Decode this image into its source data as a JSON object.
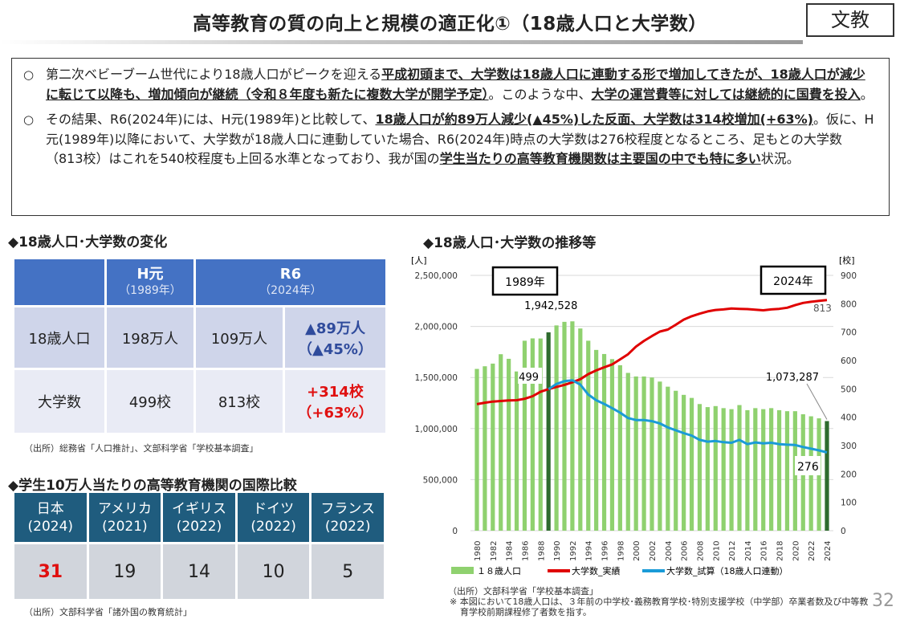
{
  "title": "高等教育の質の向上と規模の適正化①（18歳人口と大学数）",
  "badge": "文教",
  "summary": {
    "bullet": "○",
    "p1": [
      "第二次ベビーブーム世代により18歳人口がピークを迎える",
      "平成初頭まで、大学数は18歳人口に連動する形で増加してきたが、18歳人口が減少に転じて以降も、増加傾向が継続（令和８年度も新たに複数大学が開学予定）",
      "。このような中、",
      "大学の運営費等に対しては継続的に国費を投入",
      "。"
    ],
    "p2": [
      "その結果、R6(2024年)には、H元(1989年)と比較して、",
      "18歳人口が約89万人減少(▲45%)した反面、大学数は314校増加(+63%)",
      "。仮に、H元(1989年)以降において、大学数が18歳人口に連動していた場合、R6(2024年)時点の大学数は276校程度となるところ、足もとの大学数（813校）はこれを540校程度も上回る水準となっており、我が国の",
      "学生当たりの高等教育機関数は主要国の中でも特に多い",
      "状況。"
    ]
  },
  "table1": {
    "heading": "◆18歳人口･大学数の変化",
    "h1": "H元",
    "h1sub": "（1989年）",
    "h2": "R6",
    "h2sub": "（2024年）",
    "rows": [
      {
        "label": "18歳人口",
        "v1": "198万人",
        "v2": "109万人",
        "diff": "▲89万人",
        "diffpct": "（▲45%）"
      },
      {
        "label": "大学数",
        "v1": "499校",
        "v2": "813校",
        "diff": "+314校",
        "diffpct": "（+63%）"
      }
    ],
    "source": "（出所）総務省「人口推計」、文部科学省「学校基本調査」"
  },
  "table2": {
    "heading": "◆学生10万人当たりの高等教育機関の国際比較",
    "cols": [
      {
        "country": "日本",
        "year": "(2024)",
        "value": "31"
      },
      {
        "country": "アメリカ",
        "year": "(2021)",
        "value": "19"
      },
      {
        "country": "イギリス",
        "year": "(2022)",
        "value": "14"
      },
      {
        "country": "ドイツ",
        "year": "(2022)",
        "value": "10"
      },
      {
        "country": "フランス",
        "year": "(2022)",
        "value": "5"
      }
    ],
    "source": "（出所）文部科学省「諸外国の教育統計」"
  },
  "chart_heading": "◆18歳人口･大学数の推移等",
  "chart_source": "（出所）文部科学省「学校基本調査」",
  "chart_note": "※ 本図において18歳人口は、３年前の中学校･義務教育学校･特別支援学校（中学部）卒業者数及び中等教育学校前期課程修了者数を指す。",
  "page_number": "32",
  "colors": {
    "bar": "#8fd16f",
    "bar_highlight": "#2e6b2e",
    "actual": "#e00000",
    "estimate": "#1a9bd7",
    "table1_header": "#4472c4",
    "table2_header": "#1f5c7e"
  },
  "chart_data": {
    "type": "bar+line",
    "x": [
      1980,
      1981,
      1982,
      1983,
      1984,
      1985,
      1986,
      1987,
      1988,
      1989,
      1990,
      1991,
      1992,
      1993,
      1994,
      1995,
      1996,
      1997,
      1998,
      1999,
      2000,
      2001,
      2002,
      2003,
      2004,
      2005,
      2006,
      2007,
      2008,
      2009,
      2010,
      2011,
      2012,
      2013,
      2014,
      2015,
      2016,
      2017,
      2018,
      2019,
      2020,
      2021,
      2022,
      2023,
      2024
    ],
    "xticks": [
      "1980",
      "1982",
      "1984",
      "1986",
      "1988",
      "1990",
      "1992",
      "1994",
      "1996",
      "1998",
      "2000",
      "2002",
      "2004",
      "2006",
      "2008",
      "2010",
      "2012",
      "2014",
      "2016",
      "2018",
      "2020",
      "2022",
      "2024"
    ],
    "ylabel_left": "[人]",
    "ylabel_right": "[校]",
    "ylim_left": [
      0,
      2500000
    ],
    "ylim_right": [
      0,
      900
    ],
    "yticks_left": [
      "0",
      "500,000",
      "1,000,000",
      "1,500,000",
      "2,000,000",
      "2,500,000"
    ],
    "yticks_right": [
      "0",
      "100",
      "200",
      "300",
      "400",
      "500",
      "600",
      "700",
      "800",
      "900"
    ],
    "grid": true,
    "legend": "bottom",
    "series": [
      {
        "name": "１８歳人口",
        "axis": "left",
        "type": "bar",
        "values": [
          1584000,
          1610000,
          1636000,
          1728000,
          1683000,
          1559000,
          1860000,
          1883000,
          1882000,
          1942528,
          2010000,
          2045000,
          2050000,
          1980000,
          1860000,
          1770000,
          1730000,
          1680000,
          1620000,
          1545000,
          1510000,
          1510000,
          1500000,
          1460000,
          1410000,
          1370000,
          1330000,
          1300000,
          1240000,
          1210000,
          1220000,
          1200000,
          1190000,
          1230000,
          1180000,
          1200000,
          1190000,
          1200000,
          1180000,
          1170000,
          1170000,
          1140000,
          1120000,
          1100000,
          1073287
        ]
      },
      {
        "name": "大学数_実績",
        "axis": "right",
        "type": "line",
        "values": [
          446,
          451,
          455,
          457,
          459,
          460,
          465,
          474,
          490,
          499,
          507,
          514,
          523,
          534,
          552,
          565,
          576,
          586,
          604,
          622,
          649,
          669,
          686,
          702,
          709,
          726,
          744,
          756,
          765,
          773,
          778,
          780,
          783,
          782,
          781,
          779,
          777,
          780,
          782,
          786,
          795,
          803,
          807,
          810,
          813
        ]
      },
      {
        "name": "大学数_試算（18歳人口連動）",
        "axis": "right",
        "type": "line",
        "values": [
          null,
          null,
          null,
          null,
          null,
          null,
          null,
          null,
          null,
          499,
          517,
          527,
          530,
          515,
          480,
          460,
          447,
          432,
          416,
          397,
          390,
          390,
          386,
          378,
          364,
          354,
          344,
          335,
          320,
          314,
          316,
          312,
          310,
          320,
          305,
          311,
          308,
          310,
          305,
          303,
          302,
          295,
          289,
          283,
          276
        ]
      }
    ],
    "annotations": {
      "box1989": "1989年",
      "box2024": "2024年",
      "pop1989": "1,942,528",
      "pop2024": "1,073,287",
      "uni1989": "499",
      "uni2024": "813",
      "est2024": "276"
    }
  }
}
